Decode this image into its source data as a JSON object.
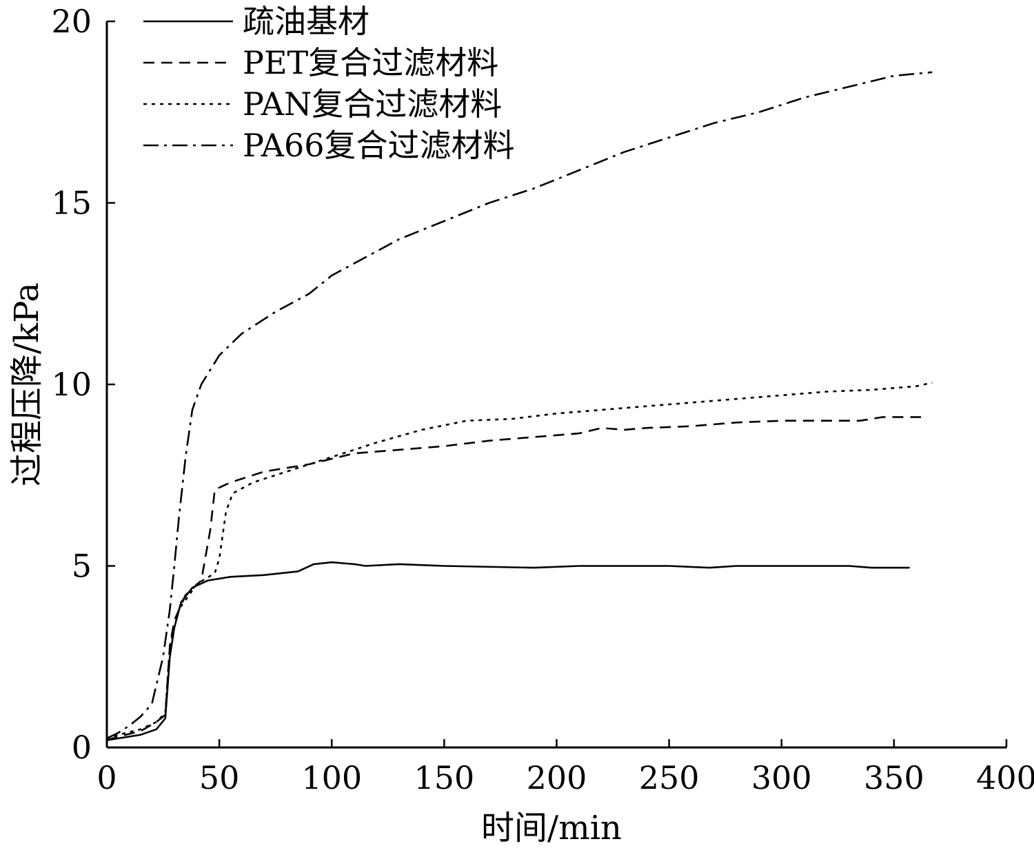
{
  "chart_data": {
    "type": "line",
    "xlabel": "时间/min",
    "ylabel": "过程压降/kPa",
    "xlim": [
      0,
      400
    ],
    "ylim": [
      0,
      20
    ],
    "xticks": [
      0,
      50,
      100,
      150,
      200,
      250,
      300,
      350,
      400
    ],
    "yticks": [
      0,
      5,
      10,
      15,
      20
    ],
    "grid": false,
    "legend_position": "top-left",
    "series": [
      {
        "name": "疏油基材",
        "style": "solid",
        "points": [
          [
            0,
            0.2
          ],
          [
            5,
            0.25
          ],
          [
            15,
            0.35
          ],
          [
            22,
            0.5
          ],
          [
            26,
            0.8
          ],
          [
            28,
            2.5
          ],
          [
            30,
            3.3
          ],
          [
            33,
            4.0
          ],
          [
            38,
            4.4
          ],
          [
            45,
            4.6
          ],
          [
            55,
            4.7
          ],
          [
            70,
            4.75
          ],
          [
            85,
            4.85
          ],
          [
            92,
            5.05
          ],
          [
            100,
            5.1
          ],
          [
            110,
            5.05
          ],
          [
            115,
            5.0
          ],
          [
            130,
            5.05
          ],
          [
            150,
            5.0
          ],
          [
            190,
            4.95
          ],
          [
            210,
            5.0
          ],
          [
            250,
            5.0
          ],
          [
            268,
            4.95
          ],
          [
            280,
            5.0
          ],
          [
            330,
            5.0
          ],
          [
            340,
            4.95
          ],
          [
            357,
            4.95
          ]
        ]
      },
      {
        "name": "PET复合过滤材料",
        "style": "dashed",
        "points": [
          [
            0,
            0.2
          ],
          [
            5,
            0.3
          ],
          [
            15,
            0.45
          ],
          [
            22,
            0.7
          ],
          [
            26,
            0.9
          ],
          [
            28,
            2.8
          ],
          [
            30,
            3.5
          ],
          [
            35,
            4.2
          ],
          [
            42,
            4.6
          ],
          [
            46,
            6.0
          ],
          [
            48,
            7.1
          ],
          [
            55,
            7.3
          ],
          [
            70,
            7.6
          ],
          [
            90,
            7.8
          ],
          [
            110,
            8.1
          ],
          [
            130,
            8.2
          ],
          [
            150,
            8.3
          ],
          [
            170,
            8.45
          ],
          [
            190,
            8.55
          ],
          [
            210,
            8.65
          ],
          [
            220,
            8.8
          ],
          [
            230,
            8.75
          ],
          [
            240,
            8.8
          ],
          [
            260,
            8.85
          ],
          [
            280,
            8.95
          ],
          [
            300,
            9.0
          ],
          [
            335,
            9.0
          ],
          [
            345,
            9.1
          ],
          [
            362,
            9.1
          ]
        ]
      },
      {
        "name": "PAN复合过滤材料",
        "style": "dotted",
        "points": [
          [
            0,
            0.2
          ],
          [
            5,
            0.35
          ],
          [
            15,
            0.5
          ],
          [
            22,
            0.7
          ],
          [
            26,
            0.95
          ],
          [
            28,
            2.8
          ],
          [
            32,
            3.8
          ],
          [
            40,
            4.5
          ],
          [
            48,
            4.8
          ],
          [
            50,
            5.2
          ],
          [
            53,
            6.5
          ],
          [
            56,
            7.0
          ],
          [
            65,
            7.3
          ],
          [
            80,
            7.6
          ],
          [
            100,
            8.0
          ],
          [
            120,
            8.4
          ],
          [
            140,
            8.75
          ],
          [
            160,
            9.0
          ],
          [
            180,
            9.05
          ],
          [
            200,
            9.2
          ],
          [
            230,
            9.35
          ],
          [
            250,
            9.45
          ],
          [
            280,
            9.6
          ],
          [
            300,
            9.7
          ],
          [
            320,
            9.8
          ],
          [
            340,
            9.85
          ],
          [
            360,
            9.95
          ],
          [
            367,
            10.05
          ]
        ]
      },
      {
        "name": "PA66复合过滤材料",
        "style": "dashdot",
        "points": [
          [
            0,
            0.25
          ],
          [
            5,
            0.4
          ],
          [
            10,
            0.6
          ],
          [
            15,
            0.85
          ],
          [
            20,
            1.2
          ],
          [
            25,
            2.5
          ],
          [
            28,
            3.8
          ],
          [
            30,
            5.0
          ],
          [
            32,
            6.3
          ],
          [
            35,
            8.0
          ],
          [
            38,
            9.3
          ],
          [
            42,
            10.0
          ],
          [
            50,
            10.8
          ],
          [
            60,
            11.4
          ],
          [
            75,
            12.0
          ],
          [
            90,
            12.5
          ],
          [
            100,
            13.0
          ],
          [
            115,
            13.5
          ],
          [
            130,
            14.0
          ],
          [
            150,
            14.5
          ],
          [
            170,
            15.0
          ],
          [
            190,
            15.4
          ],
          [
            210,
            15.9
          ],
          [
            230,
            16.4
          ],
          [
            250,
            16.8
          ],
          [
            270,
            17.2
          ],
          [
            290,
            17.5
          ],
          [
            310,
            17.9
          ],
          [
            330,
            18.2
          ],
          [
            350,
            18.5
          ],
          [
            367,
            18.6
          ]
        ]
      }
    ]
  }
}
